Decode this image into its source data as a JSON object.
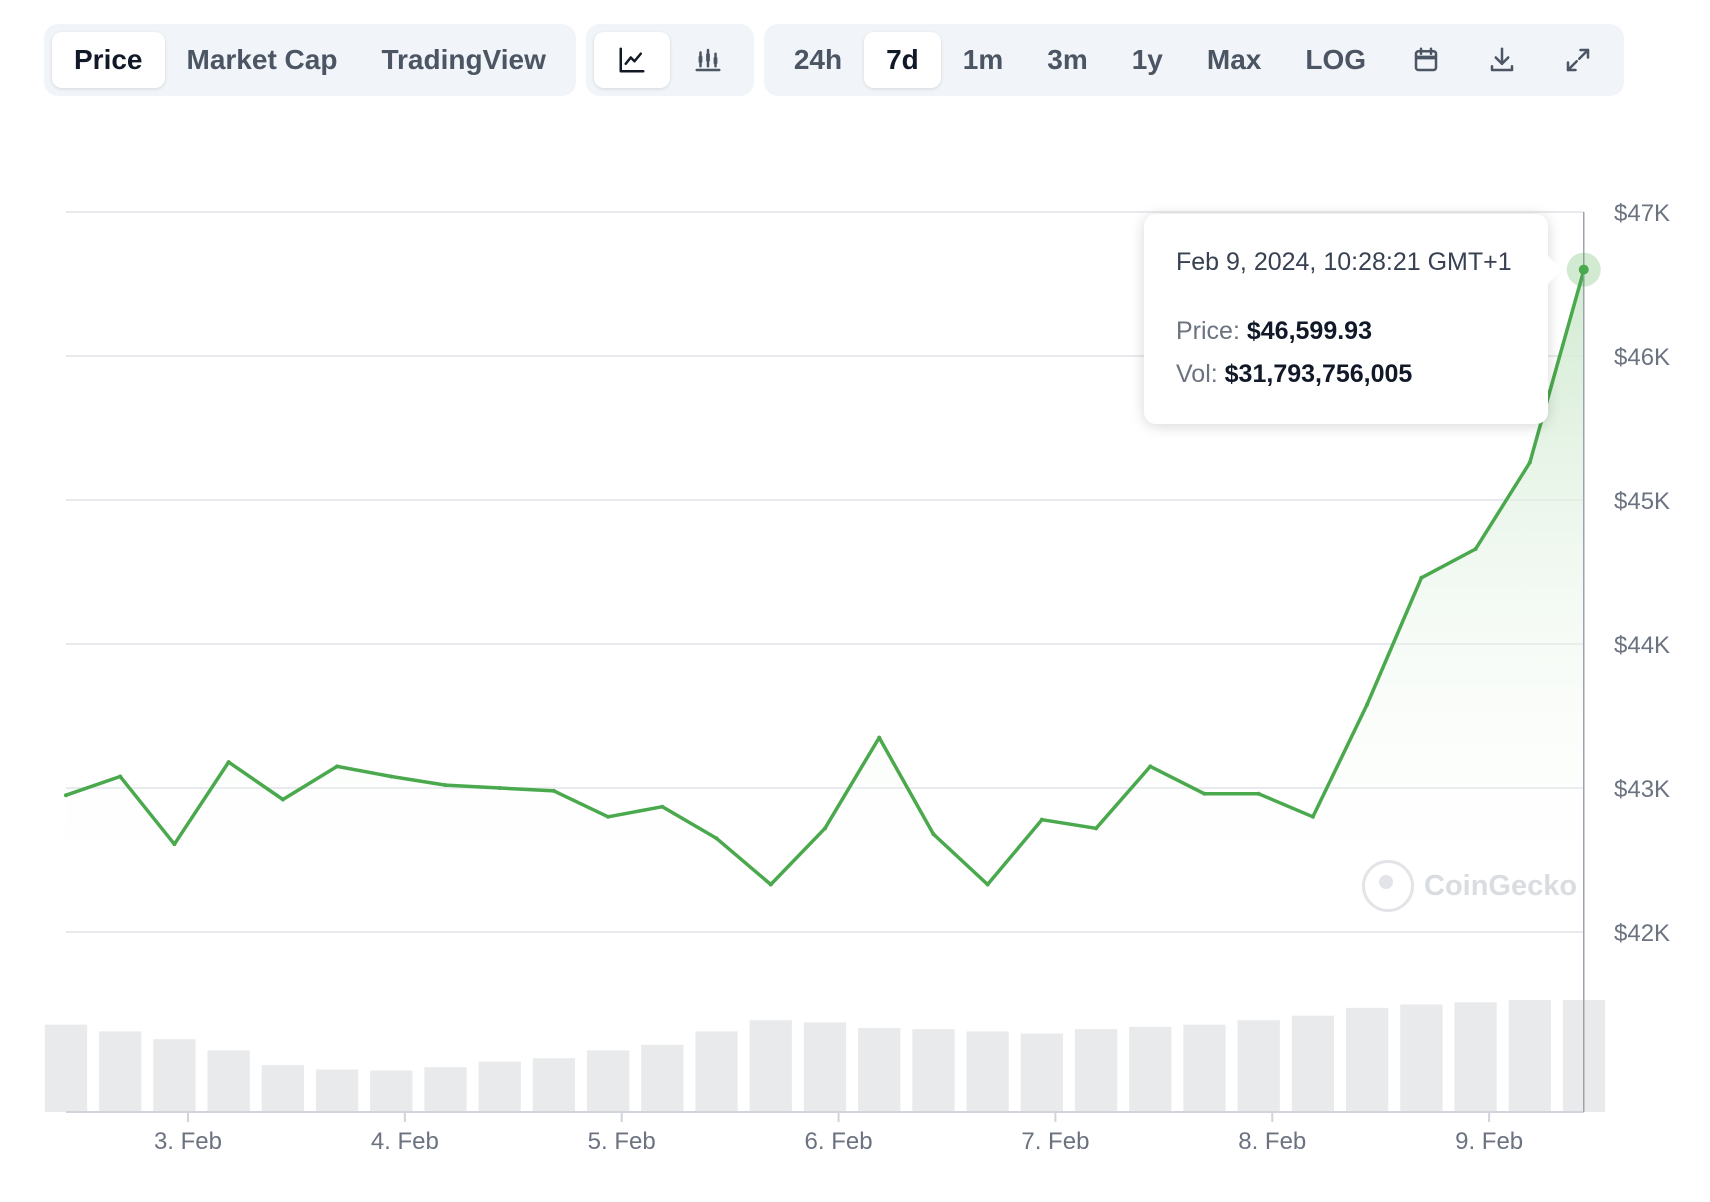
{
  "toolbar": {
    "view_tabs": [
      "Price",
      "Market Cap",
      "TradingView"
    ],
    "active_view": "Price",
    "chart_styles": [
      {
        "icon": "line-chart-icon",
        "active": true
      },
      {
        "icon": "candlestick-chart-icon",
        "active": false
      }
    ],
    "ranges": [
      "24h",
      "7d",
      "1m",
      "3m",
      "1y",
      "Max",
      "LOG"
    ],
    "active_range": "7d",
    "action_icons": [
      "calendar-icon",
      "download-icon",
      "fullscreen-icon"
    ]
  },
  "tooltip": {
    "date": "Feb 9, 2024, 10:28:21 GMT+1",
    "price_label": "Price:",
    "price_value": "$46,599.93",
    "vol_label": "Vol:",
    "vol_value": "$31,793,756,005"
  },
  "watermark": "CoinGecko",
  "colors": {
    "line": "#4aa84d",
    "fill_top": "#cfe9cf",
    "volume": "#e9eaec",
    "grid": "#e8eaed",
    "axis_text": "#6b7280"
  },
  "chart_data": {
    "type": "area",
    "ylim": [
      42000,
      47000
    ],
    "y_tick_values": [
      42000,
      43000,
      44000,
      45000,
      46000,
      47000
    ],
    "y_tick_labels": [
      "$42K",
      "$43K",
      "$44K",
      "$45K",
      "$46K",
      "$47K"
    ],
    "xlim": [
      "2024-02-02T10:30",
      "2024-02-09T10:30"
    ],
    "x_tick_values": [
      "2024-02-03",
      "2024-02-04",
      "2024-02-05",
      "2024-02-06",
      "2024-02-07",
      "2024-02-08",
      "2024-02-09"
    ],
    "x_tick_labels": [
      "3. Feb",
      "4. Feb",
      "5. Feb",
      "6. Feb",
      "7. Feb",
      "8. Feb",
      "9. Feb"
    ],
    "series": [
      {
        "x": [
          "2024-02-02T10:30",
          "2024-02-02T16:30",
          "2024-02-02T22:30",
          "2024-02-03T04:30",
          "2024-02-03T10:30",
          "2024-02-03T16:30",
          "2024-02-03T22:30",
          "2024-02-04T04:30",
          "2024-02-04T10:30",
          "2024-02-04T16:30",
          "2024-02-04T22:30",
          "2024-02-05T04:30",
          "2024-02-05T10:30",
          "2024-02-05T16:30",
          "2024-02-05T22:30",
          "2024-02-06T04:30",
          "2024-02-06T10:30",
          "2024-02-06T16:30",
          "2024-02-06T22:30",
          "2024-02-07T04:30",
          "2024-02-07T10:30",
          "2024-02-07T16:30",
          "2024-02-07T22:30",
          "2024-02-08T04:30",
          "2024-02-08T10:30",
          "2024-02-08T16:30",
          "2024-02-08T22:30",
          "2024-02-09T04:30",
          "2024-02-09T10:30"
        ],
        "y": [
          42950,
          43080,
          42610,
          43180,
          42920,
          43150,
          43080,
          43020,
          43000,
          42980,
          42800,
          42870,
          42650,
          42330,
          42720,
          43350,
          42680,
          42330,
          42780,
          42720,
          43150,
          42960,
          42960,
          42800,
          43580,
          44460,
          44660,
          45260,
          46599.93
        ],
        "volume": [
          0.78,
          0.72,
          0.65,
          0.55,
          0.42,
          0.38,
          0.37,
          0.4,
          0.45,
          0.48,
          0.55,
          0.6,
          0.72,
          0.82,
          0.8,
          0.75,
          0.74,
          0.72,
          0.7,
          0.74,
          0.76,
          0.78,
          0.82,
          0.86,
          0.93,
          0.96,
          0.98,
          1.0,
          1.0
        ]
      }
    ],
    "tooltip_x": "2024-02-09T10:28:21",
    "grid": true
  }
}
